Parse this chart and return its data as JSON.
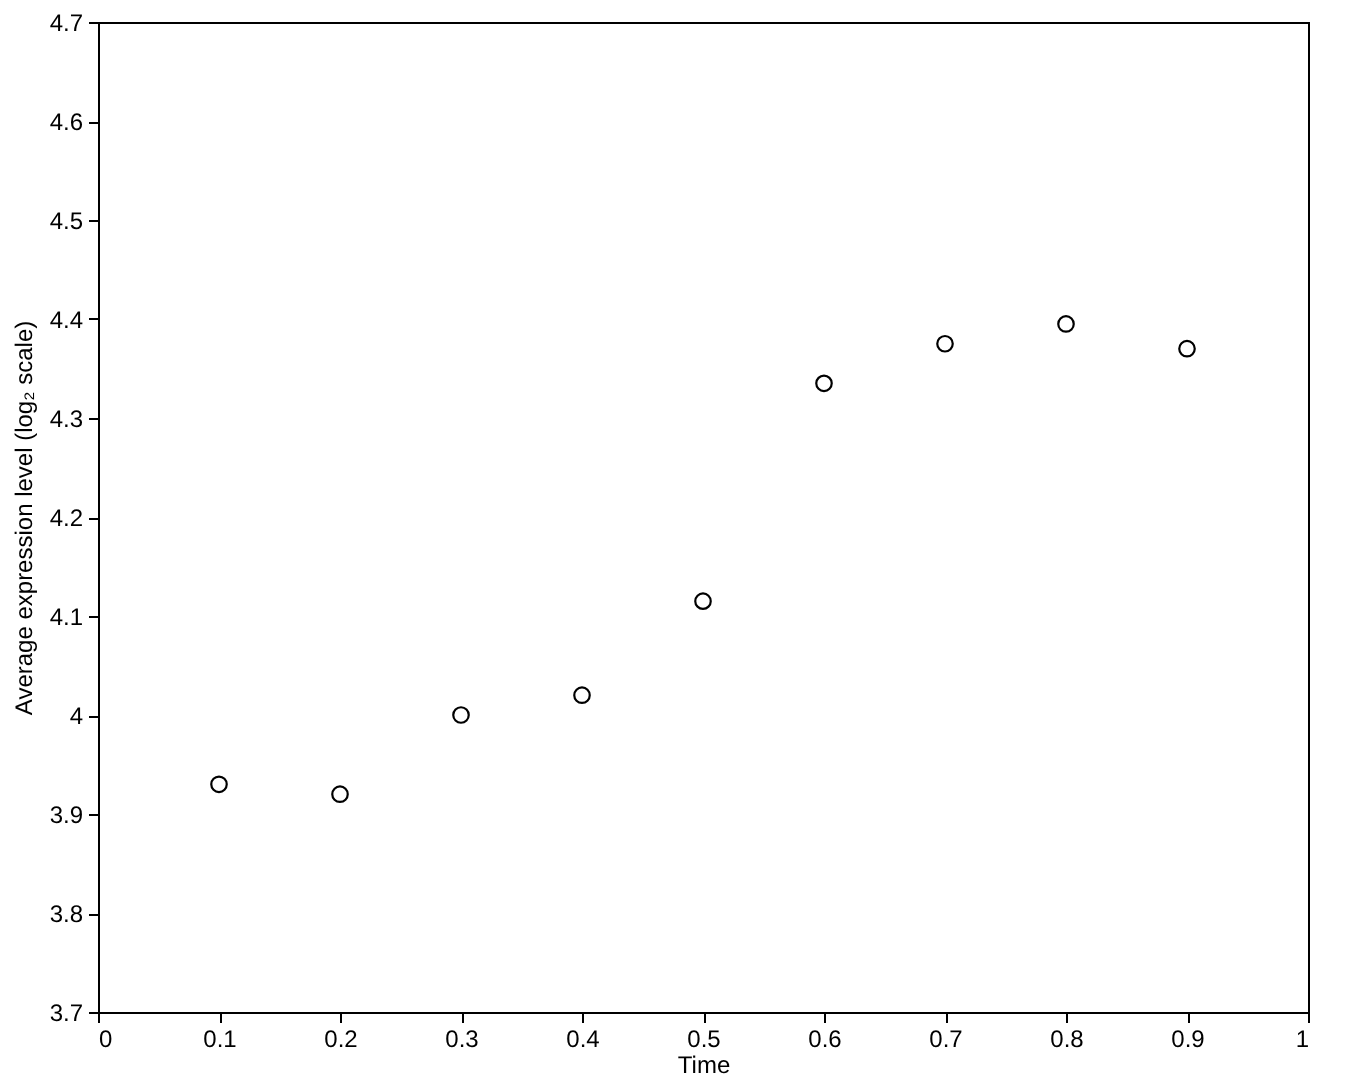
{
  "chart_data": {
    "type": "scatter",
    "xlabel": "Time",
    "ylabel": "Average expression level (log₂ scale)",
    "x": [
      0.1,
      0.2,
      0.3,
      0.4,
      0.5,
      0.6,
      0.7,
      0.8,
      0.9
    ],
    "series": [
      {
        "color": "#000000",
        "values": [
          3.93,
          3.92,
          4.0,
          4.02,
          4.115,
          4.335,
          4.375,
          4.395,
          4.37
        ]
      }
    ],
    "xlim": [
      0,
      1
    ],
    "xticks": [
      0,
      0.1,
      0.2,
      0.3,
      0.4,
      0.5,
      0.6,
      0.7,
      0.8,
      0.9,
      1
    ],
    "ylim": [
      3.7,
      4.7
    ],
    "yticks": [
      3.7,
      3.8,
      3.9,
      4,
      4.1,
      4.2,
      4.3,
      4.4,
      4.5,
      4.6,
      4.7
    ],
    "grid": false,
    "marker": "circle"
  }
}
